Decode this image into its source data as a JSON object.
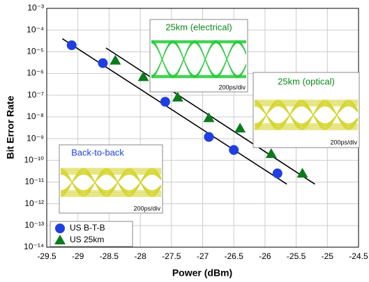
{
  "chart_data": {
    "type": "scatter",
    "xlabel": "Power (dBm)",
    "ylabel": "Bit Error Rate",
    "xlim": [
      -29.5,
      -24.5
    ],
    "xticks": [
      -29.5,
      -29,
      -28.5,
      -28,
      -27.5,
      -27,
      -26.5,
      -26,
      -25.5,
      -25,
      -24.5
    ],
    "ylim": [
      1e-14,
      0.001
    ],
    "log_y": true,
    "yticks": [
      {
        "value": 1e-14,
        "label": "10⁻¹⁴"
      },
      {
        "value": 1e-13,
        "label": "10⁻¹³"
      },
      {
        "value": 1e-12,
        "label": "10⁻¹²"
      },
      {
        "value": 1e-11,
        "label": "10⁻¹¹"
      },
      {
        "value": 1e-10,
        "label": "10⁻¹⁰"
      },
      {
        "value": 1e-09,
        "label": "10⁻⁹"
      },
      {
        "value": 1e-08,
        "label": "10⁻⁸"
      },
      {
        "value": 1e-07,
        "label": "10⁻⁷"
      },
      {
        "value": 1e-06,
        "label": "10⁻⁶"
      },
      {
        "value": 1e-05,
        "label": "10⁻⁵"
      },
      {
        "value": 0.0001,
        "label": "10⁻⁴"
      },
      {
        "value": 0.001,
        "label": "10⁻³"
      }
    ],
    "grid": true,
    "legend": "lower left",
    "series": [
      {
        "name": "US B-T-B",
        "color": "#1f3fe0",
        "marker": "circle",
        "x": [
          -29.1,
          -28.6,
          -27.6,
          -26.9,
          -26.5,
          -25.8
        ],
        "values": [
          2e-05,
          3e-06,
          5e-08,
          1.2e-09,
          3e-10,
          2.5e-11
        ]
      },
      {
        "name": "US 25km",
        "color": "#0b7a1c",
        "marker": "triangle",
        "x": [
          -28.4,
          -27.95,
          -27.4,
          -26.9,
          -26.4,
          -25.9,
          -25.4
        ],
        "values": [
          4e-06,
          7e-07,
          8e-08,
          9e-09,
          3e-09,
          2e-10,
          2.5e-11
        ]
      }
    ],
    "fits": [
      {
        "color": "#000000",
        "x": [
          -29.25,
          -25.65
        ],
        "values": [
          4e-05,
          8e-12
        ]
      },
      {
        "color": "#000000",
        "x": [
          -28.55,
          -25.2
        ],
        "values": [
          1.5e-05,
          8e-12
        ]
      }
    ],
    "annotations": [
      "25km (electrical)",
      "200ps/div",
      "25km (optical)",
      "200ps/div",
      "Back-to-back",
      "200ps/div"
    ]
  }
}
